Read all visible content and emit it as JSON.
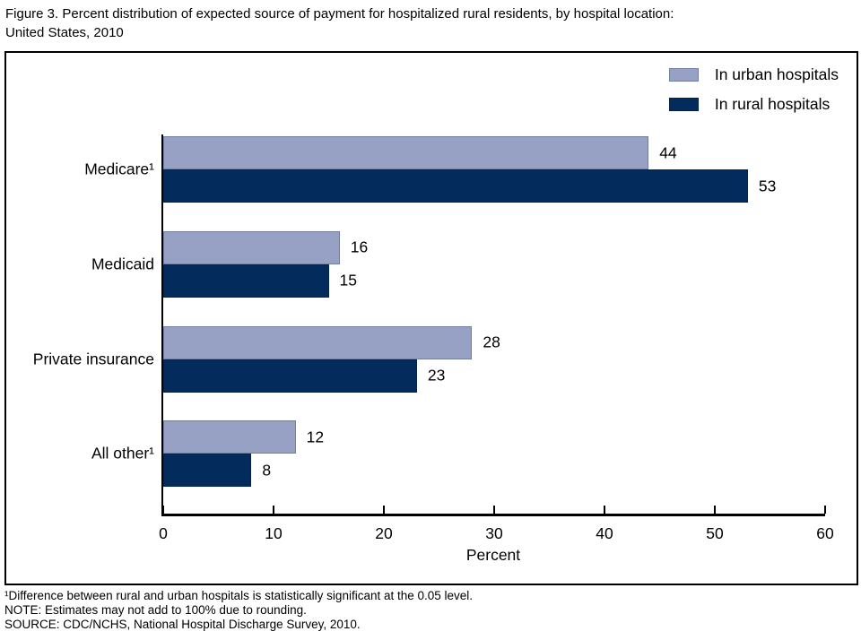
{
  "title": {
    "line1": "Figure 3. Percent distribution of expected source of payment for hospitalized rural residents, by hospital location:",
    "line2": "United States, 2010"
  },
  "colors": {
    "urban": "#96A1C4",
    "urban_border": "#707FA3",
    "rural": "#032C5C",
    "rural_border": "#02234A",
    "axis": "#000000"
  },
  "chart_data": {
    "type": "bar",
    "orientation": "horizontal",
    "title": "Figure 3. Percent distribution of expected source of payment for hospitalized rural residents, by hospital location: United States, 2010",
    "categories": [
      "Medicare¹",
      "Medicaid",
      "Private insurance",
      "All other¹"
    ],
    "series": [
      {
        "name": "In urban hospitals",
        "color_key": "urban",
        "values": [
          44,
          16,
          28,
          12
        ]
      },
      {
        "name": "In rural hospitals",
        "color_key": "rural",
        "values": [
          53,
          15,
          23,
          8
        ]
      }
    ],
    "xlabel": "Percent",
    "ylabel": "",
    "xlim": [
      0,
      60
    ],
    "xticks": [
      0,
      10,
      20,
      30,
      40,
      50,
      60
    ],
    "grid": false,
    "legend_position": "top-right",
    "value_labels": true
  },
  "footnotes": [
    "¹Difference between rural and urban hospitals is statistically significant at the 0.05 level.",
    "NOTE: Estimates may not add to 100% due to rounding.",
    "SOURCE: CDC/NCHS, National Hospital Discharge Survey, 2010."
  ]
}
